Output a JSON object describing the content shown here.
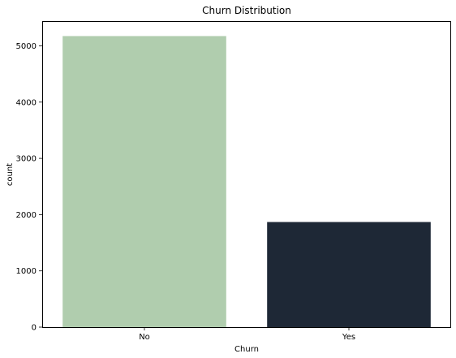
{
  "chart_data": {
    "type": "bar",
    "title": "Churn Distribution",
    "xlabel": "Churn",
    "ylabel": "count",
    "categories": [
      "No",
      "Yes"
    ],
    "values": [
      5174,
      1869
    ],
    "colors": [
      "#b0cdae",
      "#1e2836"
    ],
    "ylim": [
      0,
      5440
    ],
    "yticks": [
      0,
      1000,
      2000,
      3000,
      4000,
      5000
    ],
    "grid": false,
    "legend": "none"
  }
}
